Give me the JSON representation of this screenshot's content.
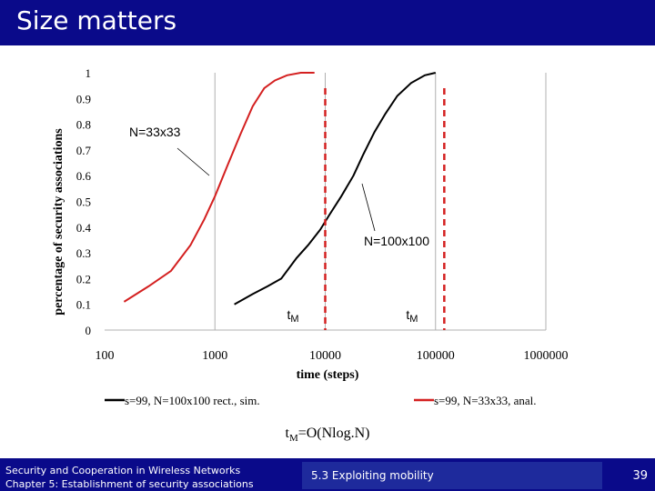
{
  "slide": {
    "title": "Size matters",
    "formula": {
      "prefix": "t",
      "sub": "M",
      "rest": "=O(Nlog.N)"
    },
    "footer": {
      "line1": "Security and Cooperation in Wireless Networks",
      "line2": "Chapter 5: Establishment of security associations",
      "section": "5.3 Exploiting mobility",
      "page": "39"
    },
    "colors": {
      "bar": "#0a0a8a",
      "red": "#d42020",
      "black": "#000000"
    }
  },
  "chart_data": {
    "type": "line",
    "xscale": "log",
    "xlim": [
      100,
      1000000
    ],
    "ylim": [
      0,
      1
    ],
    "xticks": [
      "100",
      "1000",
      "10000",
      "100000",
      "1000000"
    ],
    "yticks": [
      "0",
      "0.1",
      "0.2",
      "0.3",
      "0.4",
      "0.5",
      "0.6",
      "0.7",
      "0.8",
      "0.9",
      "1"
    ],
    "xlabel": "time (steps)",
    "ylabel": "percentage of security associations",
    "grid": "vertical",
    "series": [
      {
        "name": "s=99, N=100x100 rect., sim.",
        "color": "#000000",
        "x": [
          1500,
          2200,
          3000,
          4000,
          5500,
          7000,
          9000,
          11000,
          14000,
          18000,
          22000,
          28000,
          35000,
          45000,
          60000,
          80000,
          100000
        ],
        "y": [
          0.1,
          0.14,
          0.17,
          0.2,
          0.28,
          0.33,
          0.39,
          0.45,
          0.52,
          0.6,
          0.68,
          0.77,
          0.84,
          0.91,
          0.96,
          0.99,
          1.0
        ]
      },
      {
        "name": "s=99, N=33x33, anal.",
        "color": "#d42020",
        "x": [
          150,
          250,
          400,
          600,
          800,
          1000,
          1300,
          1700,
          2200,
          2800,
          3500,
          4500,
          6000,
          8000
        ],
        "y": [
          0.11,
          0.17,
          0.23,
          0.33,
          0.43,
          0.52,
          0.64,
          0.76,
          0.87,
          0.94,
          0.97,
          0.99,
          1.0,
          1.0
        ]
      }
    ],
    "vlines": [
      {
        "x": 10000,
        "color": "#d42020",
        "label": "tM"
      },
      {
        "x": 120000,
        "color": "#d42020",
        "label": "tM"
      }
    ],
    "annotations": [
      {
        "text": "N=33x33",
        "points_to": {
          "x": 900,
          "y": 0.62
        }
      },
      {
        "text": "N=100x100",
        "points_to": {
          "x": 20000,
          "y": 0.58
        }
      }
    ],
    "legend": "bottom"
  }
}
